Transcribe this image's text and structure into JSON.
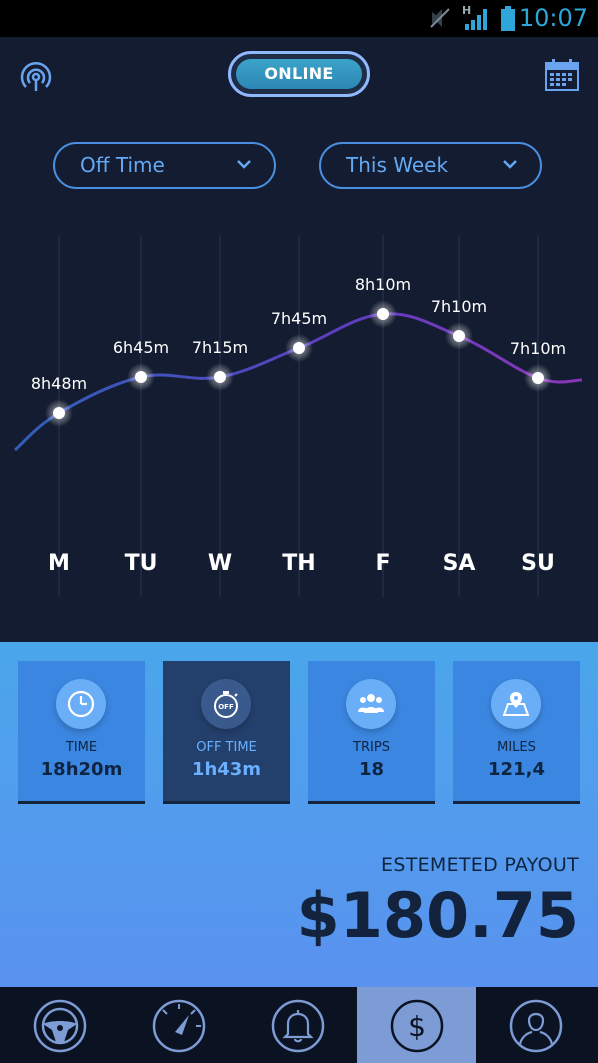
{
  "statusbar": {
    "time": "10:07",
    "network_label": "H"
  },
  "header": {
    "online_label": "ONLINE"
  },
  "filters": {
    "metric": "Off Time",
    "period": "This Week"
  },
  "chart_data": {
    "type": "line",
    "categories": [
      "M",
      "TU",
      "W",
      "TH",
      "F",
      "SA",
      "SU"
    ],
    "data_labels": [
      "8h48m",
      "6h45m",
      "7h15m",
      "7h45m",
      "8h10m",
      "7h10m",
      "7h10m"
    ],
    "values_minutes": [
      528,
      405,
      435,
      465,
      490,
      430,
      430
    ],
    "title": "",
    "xlabel": "",
    "ylabel": "",
    "grid": "vertical"
  },
  "stats": [
    {
      "label": "TIME",
      "value": "18h20m",
      "icon": "clock-icon",
      "active": false
    },
    {
      "label": "OFF TIME",
      "value": "1h43m",
      "icon": "stopwatch-off-icon",
      "active": true,
      "icon_text": "OFF"
    },
    {
      "label": "TRIPS",
      "value": "18",
      "icon": "people-icon",
      "active": false
    },
    {
      "label": "MILES",
      "value": "121,4",
      "icon": "map-pin-icon",
      "active": false
    }
  ],
  "payout": {
    "label": "ESTEMETED PAYOUT",
    "value": "$180.75"
  },
  "nav": [
    {
      "icon": "steering-wheel-icon",
      "active": false
    },
    {
      "icon": "speedometer-icon",
      "active": false
    },
    {
      "icon": "bell-icon",
      "active": false
    },
    {
      "icon": "dollar-icon",
      "active": true
    },
    {
      "icon": "user-icon",
      "active": false
    }
  ],
  "colors": {
    "accent": "#4a8ee0",
    "background": "#131c30",
    "stats_panel": "#4aa6ea",
    "active_card": "#233f6b"
  }
}
